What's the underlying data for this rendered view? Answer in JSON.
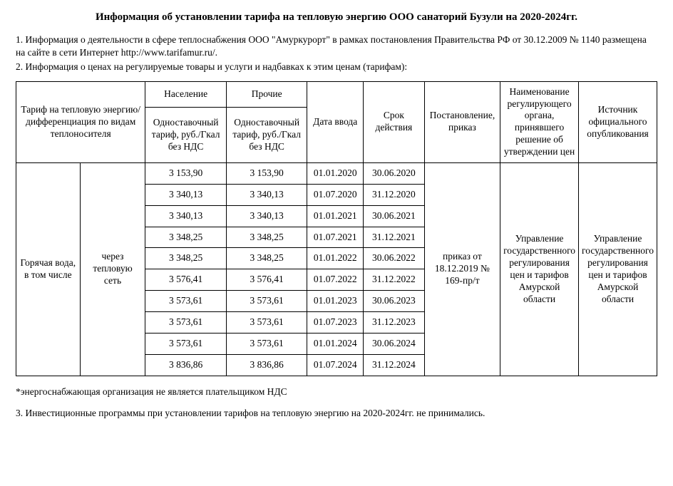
{
  "title": "Информация об установлении тарифа на тепловую энергию ООО санаторий Бузули на 2020-2024гг.",
  "para1": "1. Информация о деятельности в сфере теплоснабжения ООО \"Амуркурорт\" в рамках постановления Правительства РФ от 30.12.2009 № 1140 размещена на сайте в сети Интернет http://www.tarifamur.ru/.",
  "para2": "2. Информация о ценах на регулируемые товары и услуги и надбавках к этим ценам (тарифам):",
  "tbl": {
    "h": {
      "tariff": "Тариф на тепловую энергию/дифференциация по видам теплоносителя",
      "pop": "Население",
      "other": "Прочие",
      "sub": "Одноставочный тариф, руб./Гкал без НДС",
      "dateIn": "Дата ввода",
      "term": "Срок действия",
      "order": "Постановление, приказ",
      "reg": "Наименование регулирующего органа, принявшего решение об утверждении цен",
      "src": "Источник официального опубликования"
    },
    "body": {
      "col1": "Горячая вода, в том числе",
      "col2": "через тепловую сеть",
      "order": "приказ от 18.12.2019 № 169-пр/т",
      "reg": "Управление государственного регулирования цен и тарифов Амурской области",
      "src": "Управление государственного регулирования цен и тарифов Амурской области"
    }
  },
  "rows": [
    {
      "p": "3 153,90",
      "o": "3 153,90",
      "d": "01.01.2020",
      "t": "30.06.2020"
    },
    {
      "p": "3 340,13",
      "o": "3 340,13",
      "d": "01.07.2020",
      "t": "31.12.2020"
    },
    {
      "p": "3 340,13",
      "o": "3 340,13",
      "d": "01.01.2021",
      "t": "30.06.2021"
    },
    {
      "p": "3 348,25",
      "o": "3 348,25",
      "d": "01.07.2021",
      "t": "31.12.2021"
    },
    {
      "p": "3 348,25",
      "o": "3 348,25",
      "d": "01.01.2022",
      "t": "30.06.2022"
    },
    {
      "p": "3 576,41",
      "o": "3 576,41",
      "d": "01.07.2022",
      "t": "31.12.2022"
    },
    {
      "p": "3 573,61",
      "o": "3 573,61",
      "d": "01.01.2023",
      "t": "30.06.2023"
    },
    {
      "p": "3 573,61",
      "o": "3 573,61",
      "d": "01.07.2023",
      "t": "31.12.2023"
    },
    {
      "p": "3 573,61",
      "o": "3 573,61",
      "d": "01.01.2024",
      "t": "30.06.2024"
    },
    {
      "p": "3 836,86",
      "o": "3 836,86",
      "d": "01.07.2024",
      "t": "31.12.2024"
    }
  ],
  "footnote": "*энергоснабжающая организация не является плательщиком НДС",
  "para3": "3. Инвестиционные программы при установлении тарифов на тепловую энергию на 2020-2024гг. не принимались.",
  "style": {
    "border_color": "#000000",
    "background_color": "#ffffff",
    "font_family": "Times New Roman",
    "title_fontsize": 15,
    "body_fontsize": 13.5,
    "col_widths_pct": [
      11,
      11,
      13,
      13,
      9,
      10,
      12,
      11,
      10
    ]
  }
}
